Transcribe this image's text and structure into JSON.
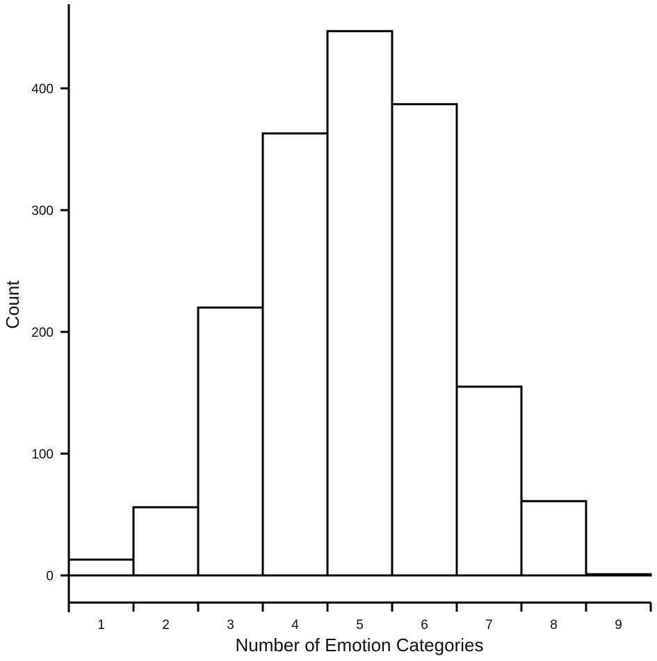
{
  "chart_data": {
    "type": "bar",
    "title": "",
    "xlabel": "Number of Emotion Categories",
    "ylabel": "Count",
    "categories": [
      "1",
      "2",
      "3",
      "4",
      "5",
      "6",
      "7",
      "8",
      "9"
    ],
    "values": [
      13,
      56,
      220,
      363,
      447,
      387,
      155,
      61,
      1
    ],
    "yticks": [
      0,
      100,
      200,
      300,
      400
    ],
    "ylim": [
      -22,
      468
    ],
    "grid": false,
    "legend": null,
    "bar_fill": "#ffffff",
    "bar_stroke": "#000000"
  }
}
